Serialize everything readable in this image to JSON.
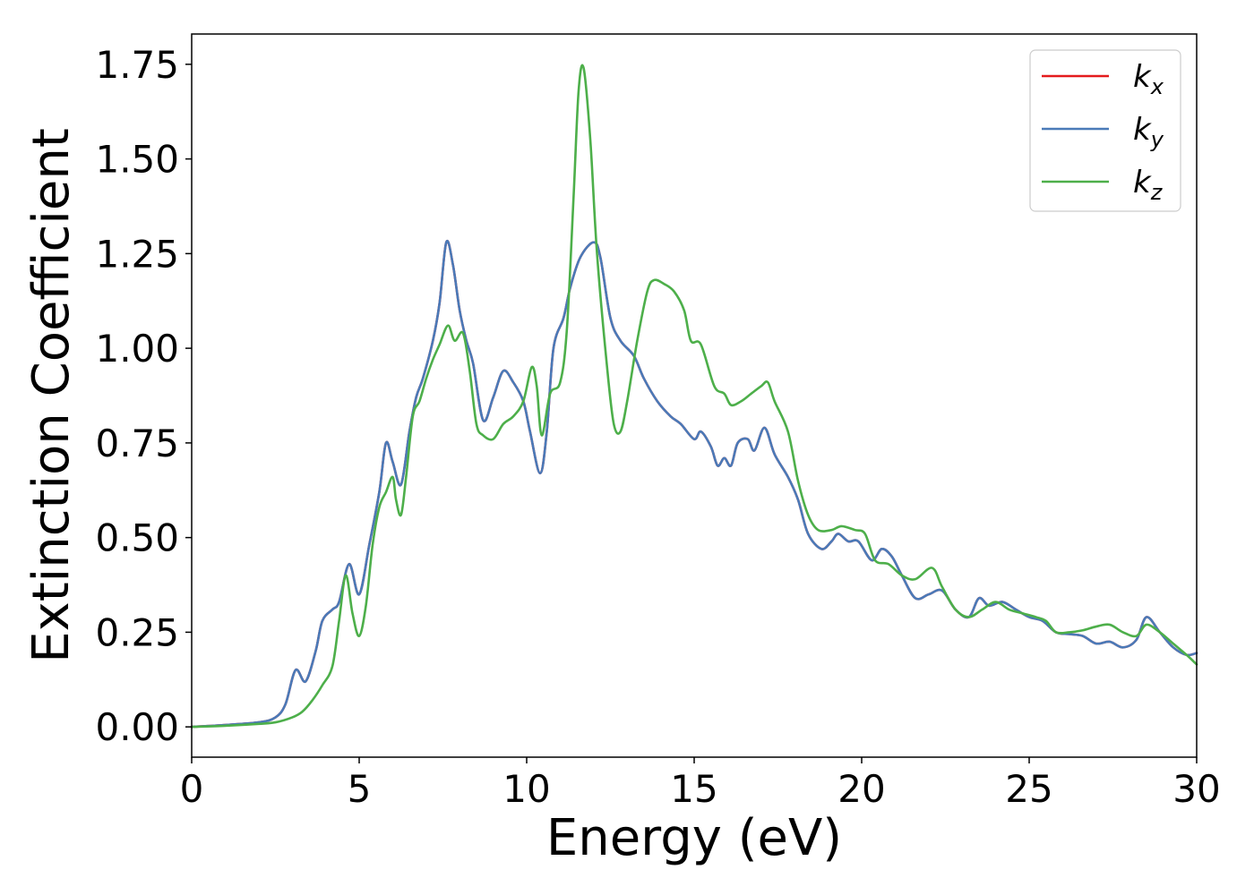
{
  "chart_data": {
    "type": "line",
    "title": "",
    "xlabel": "Energy (eV)",
    "ylabel": "Extinction Coefficient",
    "xlim": [
      0,
      30
    ],
    "ylim": [
      -0.08,
      1.83
    ],
    "xticks": [
      0,
      5,
      10,
      15,
      20,
      25,
      30
    ],
    "xtick_labels": [
      "0",
      "5",
      "10",
      "15",
      "20",
      "25",
      "30"
    ],
    "yticks": [
      0.0,
      0.25,
      0.5,
      0.75,
      1.0,
      1.25,
      1.5,
      1.75
    ],
    "ytick_labels": [
      "0.00",
      "0.25",
      "0.50",
      "0.75",
      "1.00",
      "1.25",
      "1.50",
      "1.75"
    ],
    "grid": false,
    "legend_position": "top-right",
    "series": [
      {
        "name": "k_x",
        "legend_main": "k",
        "legend_sub": "x",
        "color": "#e41a1c",
        "points": [
          [
            0,
            0
          ],
          [
            1,
            0.005
          ],
          [
            2,
            0.012
          ],
          [
            2.5,
            0.025
          ],
          [
            2.8,
            0.06
          ],
          [
            3.1,
            0.15
          ],
          [
            3.4,
            0.12
          ],
          [
            3.7,
            0.2
          ],
          [
            3.9,
            0.28
          ],
          [
            4.2,
            0.31
          ],
          [
            4.4,
            0.33
          ],
          [
            4.7,
            0.43
          ],
          [
            5.0,
            0.35
          ],
          [
            5.3,
            0.48
          ],
          [
            5.6,
            0.62
          ],
          [
            5.8,
            0.75
          ],
          [
            6.0,
            0.7
          ],
          [
            6.25,
            0.64
          ],
          [
            6.5,
            0.78
          ],
          [
            6.7,
            0.87
          ],
          [
            6.9,
            0.92
          ],
          [
            7.2,
            1.02
          ],
          [
            7.4,
            1.12
          ],
          [
            7.6,
            1.28
          ],
          [
            7.8,
            1.22
          ],
          [
            8.0,
            1.1
          ],
          [
            8.2,
            1.02
          ],
          [
            8.4,
            0.96
          ],
          [
            8.7,
            0.81
          ],
          [
            9.0,
            0.87
          ],
          [
            9.3,
            0.94
          ],
          [
            9.6,
            0.91
          ],
          [
            9.9,
            0.86
          ],
          [
            10.1,
            0.78
          ],
          [
            10.4,
            0.67
          ],
          [
            10.6,
            0.78
          ],
          [
            10.8,
            1.0
          ],
          [
            11.1,
            1.08
          ],
          [
            11.3,
            1.16
          ],
          [
            11.6,
            1.24
          ],
          [
            12.0,
            1.28
          ],
          [
            12.2,
            1.24
          ],
          [
            12.5,
            1.08
          ],
          [
            12.8,
            1.02
          ],
          [
            13.2,
            0.98
          ],
          [
            13.5,
            0.92
          ],
          [
            13.9,
            0.86
          ],
          [
            14.3,
            0.82
          ],
          [
            14.6,
            0.8
          ],
          [
            15.0,
            0.76
          ],
          [
            15.2,
            0.78
          ],
          [
            15.5,
            0.74
          ],
          [
            15.7,
            0.69
          ],
          [
            15.9,
            0.71
          ],
          [
            16.1,
            0.69
          ],
          [
            16.3,
            0.75
          ],
          [
            16.6,
            0.76
          ],
          [
            16.8,
            0.73
          ],
          [
            17.1,
            0.79
          ],
          [
            17.4,
            0.72
          ],
          [
            17.8,
            0.66
          ],
          [
            18.1,
            0.6
          ],
          [
            18.4,
            0.51
          ],
          [
            18.8,
            0.47
          ],
          [
            19.1,
            0.49
          ],
          [
            19.3,
            0.51
          ],
          [
            19.6,
            0.49
          ],
          [
            19.9,
            0.49
          ],
          [
            20.3,
            0.44
          ],
          [
            20.6,
            0.47
          ],
          [
            20.9,
            0.45
          ],
          [
            21.2,
            0.4
          ],
          [
            21.6,
            0.34
          ],
          [
            22.0,
            0.35
          ],
          [
            22.4,
            0.36
          ],
          [
            22.8,
            0.31
          ],
          [
            23.2,
            0.29
          ],
          [
            23.5,
            0.34
          ],
          [
            23.8,
            0.32
          ],
          [
            24.2,
            0.33
          ],
          [
            24.6,
            0.31
          ],
          [
            25.0,
            0.29
          ],
          [
            25.4,
            0.28
          ],
          [
            25.8,
            0.25
          ],
          [
            26.2,
            0.245
          ],
          [
            26.6,
            0.24
          ],
          [
            27.0,
            0.22
          ],
          [
            27.4,
            0.225
          ],
          [
            27.8,
            0.21
          ],
          [
            28.2,
            0.23
          ],
          [
            28.5,
            0.29
          ],
          [
            28.9,
            0.25
          ],
          [
            29.3,
            0.21
          ],
          [
            29.7,
            0.19
          ],
          [
            30,
            0.195
          ]
        ]
      },
      {
        "name": "k_y",
        "legend_main": "k",
        "legend_sub": "y",
        "color": "#4a7ab8",
        "points": [
          [
            0,
            0
          ],
          [
            1,
            0.005
          ],
          [
            2,
            0.012
          ],
          [
            2.5,
            0.025
          ],
          [
            2.8,
            0.06
          ],
          [
            3.1,
            0.15
          ],
          [
            3.4,
            0.12
          ],
          [
            3.7,
            0.2
          ],
          [
            3.9,
            0.28
          ],
          [
            4.2,
            0.31
          ],
          [
            4.4,
            0.33
          ],
          [
            4.7,
            0.43
          ],
          [
            5.0,
            0.35
          ],
          [
            5.3,
            0.48
          ],
          [
            5.6,
            0.62
          ],
          [
            5.8,
            0.75
          ],
          [
            6.0,
            0.7
          ],
          [
            6.25,
            0.64
          ],
          [
            6.5,
            0.78
          ],
          [
            6.7,
            0.87
          ],
          [
            6.9,
            0.92
          ],
          [
            7.2,
            1.02
          ],
          [
            7.4,
            1.12
          ],
          [
            7.6,
            1.28
          ],
          [
            7.8,
            1.22
          ],
          [
            8.0,
            1.1
          ],
          [
            8.2,
            1.02
          ],
          [
            8.4,
            0.96
          ],
          [
            8.7,
            0.81
          ],
          [
            9.0,
            0.87
          ],
          [
            9.3,
            0.94
          ],
          [
            9.6,
            0.91
          ],
          [
            9.9,
            0.86
          ],
          [
            10.1,
            0.78
          ],
          [
            10.4,
            0.67
          ],
          [
            10.6,
            0.78
          ],
          [
            10.8,
            1.0
          ],
          [
            11.1,
            1.08
          ],
          [
            11.3,
            1.16
          ],
          [
            11.6,
            1.24
          ],
          [
            12.0,
            1.28
          ],
          [
            12.2,
            1.24
          ],
          [
            12.5,
            1.08
          ],
          [
            12.8,
            1.02
          ],
          [
            13.2,
            0.98
          ],
          [
            13.5,
            0.92
          ],
          [
            13.9,
            0.86
          ],
          [
            14.3,
            0.82
          ],
          [
            14.6,
            0.8
          ],
          [
            15.0,
            0.76
          ],
          [
            15.2,
            0.78
          ],
          [
            15.5,
            0.74
          ],
          [
            15.7,
            0.69
          ],
          [
            15.9,
            0.71
          ],
          [
            16.1,
            0.69
          ],
          [
            16.3,
            0.75
          ],
          [
            16.6,
            0.76
          ],
          [
            16.8,
            0.73
          ],
          [
            17.1,
            0.79
          ],
          [
            17.4,
            0.72
          ],
          [
            17.8,
            0.66
          ],
          [
            18.1,
            0.6
          ],
          [
            18.4,
            0.51
          ],
          [
            18.8,
            0.47
          ],
          [
            19.1,
            0.49
          ],
          [
            19.3,
            0.51
          ],
          [
            19.6,
            0.49
          ],
          [
            19.9,
            0.49
          ],
          [
            20.3,
            0.44
          ],
          [
            20.6,
            0.47
          ],
          [
            20.9,
            0.45
          ],
          [
            21.2,
            0.4
          ],
          [
            21.6,
            0.34
          ],
          [
            22.0,
            0.35
          ],
          [
            22.4,
            0.36
          ],
          [
            22.8,
            0.31
          ],
          [
            23.2,
            0.29
          ],
          [
            23.5,
            0.34
          ],
          [
            23.8,
            0.32
          ],
          [
            24.2,
            0.33
          ],
          [
            24.6,
            0.31
          ],
          [
            25.0,
            0.29
          ],
          [
            25.4,
            0.28
          ],
          [
            25.8,
            0.25
          ],
          [
            26.2,
            0.245
          ],
          [
            26.6,
            0.24
          ],
          [
            27.0,
            0.22
          ],
          [
            27.4,
            0.225
          ],
          [
            27.8,
            0.21
          ],
          [
            28.2,
            0.23
          ],
          [
            28.5,
            0.29
          ],
          [
            28.9,
            0.25
          ],
          [
            29.3,
            0.21
          ],
          [
            29.7,
            0.19
          ],
          [
            30,
            0.195
          ]
        ]
      },
      {
        "name": "k_z",
        "legend_main": "k",
        "legend_sub": "z",
        "color": "#4daf4a",
        "points": [
          [
            0,
            0
          ],
          [
            1,
            0.003
          ],
          [
            2,
            0.008
          ],
          [
            2.5,
            0.012
          ],
          [
            3.0,
            0.025
          ],
          [
            3.3,
            0.04
          ],
          [
            3.6,
            0.07
          ],
          [
            3.9,
            0.11
          ],
          [
            4.2,
            0.16
          ],
          [
            4.4,
            0.28
          ],
          [
            4.6,
            0.4
          ],
          [
            4.8,
            0.3
          ],
          [
            5.0,
            0.24
          ],
          [
            5.2,
            0.32
          ],
          [
            5.4,
            0.48
          ],
          [
            5.6,
            0.58
          ],
          [
            5.8,
            0.62
          ],
          [
            6.0,
            0.66
          ],
          [
            6.1,
            0.6
          ],
          [
            6.25,
            0.56
          ],
          [
            6.4,
            0.66
          ],
          [
            6.6,
            0.82
          ],
          [
            6.8,
            0.86
          ],
          [
            7.0,
            0.92
          ],
          [
            7.2,
            0.97
          ],
          [
            7.4,
            1.01
          ],
          [
            7.65,
            1.06
          ],
          [
            7.85,
            1.02
          ],
          [
            8.1,
            1.04
          ],
          [
            8.3,
            0.94
          ],
          [
            8.5,
            0.8
          ],
          [
            8.7,
            0.77
          ],
          [
            9.0,
            0.76
          ],
          [
            9.3,
            0.8
          ],
          [
            9.6,
            0.82
          ],
          [
            9.9,
            0.86
          ],
          [
            10.15,
            0.95
          ],
          [
            10.3,
            0.9
          ],
          [
            10.45,
            0.77
          ],
          [
            10.7,
            0.88
          ],
          [
            11.0,
            0.91
          ],
          [
            11.2,
            1.05
          ],
          [
            11.4,
            1.4
          ],
          [
            11.55,
            1.68
          ],
          [
            11.7,
            1.74
          ],
          [
            11.9,
            1.55
          ],
          [
            12.1,
            1.25
          ],
          [
            12.4,
            0.95
          ],
          [
            12.6,
            0.8
          ],
          [
            12.8,
            0.78
          ],
          [
            13.0,
            0.86
          ],
          [
            13.3,
            1.02
          ],
          [
            13.6,
            1.15
          ],
          [
            13.8,
            1.18
          ],
          [
            14.1,
            1.17
          ],
          [
            14.4,
            1.15
          ],
          [
            14.7,
            1.1
          ],
          [
            14.9,
            1.02
          ],
          [
            15.2,
            1.01
          ],
          [
            15.6,
            0.9
          ],
          [
            15.9,
            0.88
          ],
          [
            16.1,
            0.85
          ],
          [
            16.4,
            0.86
          ],
          [
            16.7,
            0.88
          ],
          [
            17.0,
            0.9
          ],
          [
            17.2,
            0.91
          ],
          [
            17.4,
            0.86
          ],
          [
            17.8,
            0.78
          ],
          [
            18.1,
            0.65
          ],
          [
            18.4,
            0.56
          ],
          [
            18.7,
            0.52
          ],
          [
            19.1,
            0.52
          ],
          [
            19.4,
            0.53
          ],
          [
            19.8,
            0.52
          ],
          [
            20.1,
            0.51
          ],
          [
            20.4,
            0.44
          ],
          [
            20.8,
            0.43
          ],
          [
            21.2,
            0.4
          ],
          [
            21.6,
            0.39
          ],
          [
            22.1,
            0.42
          ],
          [
            22.4,
            0.37
          ],
          [
            22.8,
            0.31
          ],
          [
            23.2,
            0.29
          ],
          [
            23.6,
            0.31
          ],
          [
            24.0,
            0.33
          ],
          [
            24.4,
            0.31
          ],
          [
            24.8,
            0.3
          ],
          [
            25.2,
            0.29
          ],
          [
            25.5,
            0.28
          ],
          [
            25.8,
            0.25
          ],
          [
            26.2,
            0.25
          ],
          [
            26.6,
            0.255
          ],
          [
            27.0,
            0.265
          ],
          [
            27.4,
            0.27
          ],
          [
            27.8,
            0.25
          ],
          [
            28.2,
            0.24
          ],
          [
            28.5,
            0.27
          ],
          [
            28.9,
            0.25
          ],
          [
            29.3,
            0.22
          ],
          [
            29.7,
            0.19
          ],
          [
            30,
            0.165
          ]
        ]
      }
    ]
  }
}
